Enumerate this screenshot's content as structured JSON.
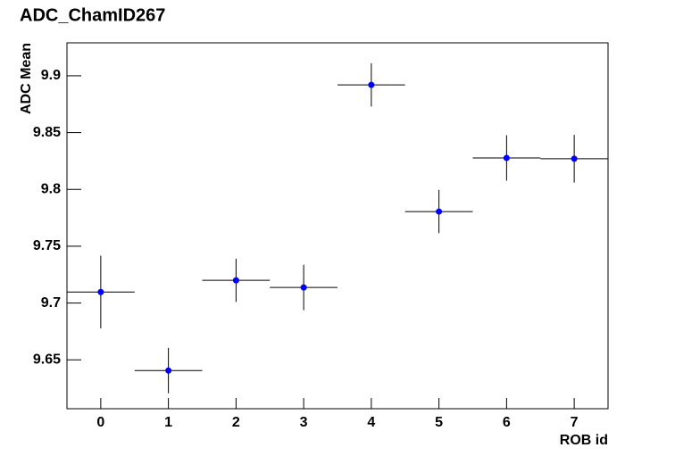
{
  "chart_data": {
    "type": "scatter",
    "title": "ADC_ChamID267",
    "x_label": "ROB id",
    "y_label": "ADC Mean",
    "x": [
      0,
      1,
      2,
      3,
      4,
      5,
      6,
      7
    ],
    "xerr": [
      0.5,
      0.5,
      0.5,
      0.5,
      0.5,
      0.5,
      0.5,
      0.5
    ],
    "values": [
      9.7097,
      9.6406,
      9.72,
      9.7137,
      9.892,
      9.7805,
      9.8277,
      9.827
    ],
    "yerr": [
      0.032,
      0.02,
      0.019,
      0.02,
      0.019,
      0.019,
      0.02,
      0.021
    ],
    "color": "#0000ff",
    "error_color": "#000000",
    "xlim": [
      -0.5,
      7.5
    ],
    "xticks": [
      0,
      1,
      2,
      3,
      4,
      5,
      6,
      7
    ],
    "ylim": [
      9.607,
      9.929
    ],
    "yticks": [
      9.65,
      9.7,
      9.75,
      9.8,
      9.85,
      9.9
    ],
    "grid": false
  }
}
